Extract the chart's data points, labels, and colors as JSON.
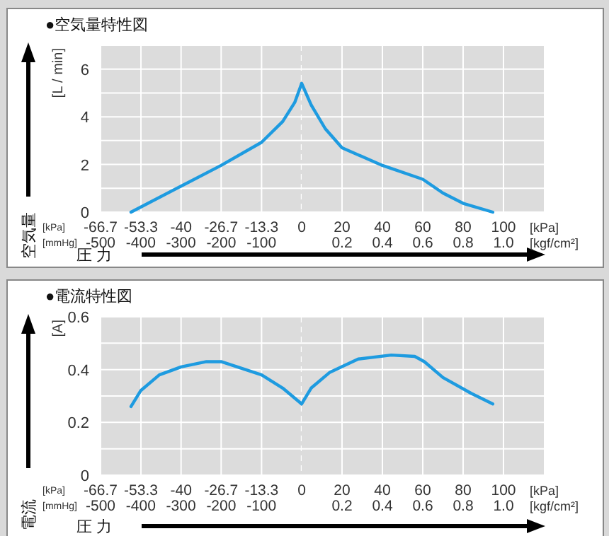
{
  "chart_data": [
    {
      "type": "line",
      "title": "●空気量特性図",
      "xlabel": "圧 力",
      "ylabel": "空気量",
      "annotations": [
        "[L / min]",
        "[kPa]",
        "[mmHg]"
      ],
      "x": [
        -56.6,
        -40,
        -26.7,
        -13.3,
        -6.3,
        -2.3,
        0
      ],
      "series": [
        {
          "color": "#1e9be0",
          "values": [
            0,
            1.09,
            1.96,
            2.93,
            3.8,
            4.6,
            5.4
          ]
        }
      ],
      "xlim": [
        -66.7,
        0
      ],
      "xticks": [
        -66.7,
        -53.3,
        -40,
        -26.7,
        -13.3,
        0
      ],
      "x2lim": [
        -500,
        0
      ],
      "x2ticks": [
        -500,
        -400,
        -300,
        -200,
        -100
      ],
      "ylim": [
        0,
        7
      ],
      "yticks": [
        0,
        {
          "value": 1,
          "label": null
        },
        2,
        {
          "value": 3,
          "label": null
        },
        4,
        {
          "value": 5,
          "label": null
        },
        6,
        {
          "value": 7,
          "label": null
        }
      ],
      "ref_lines": [
        {
          "axis": "x",
          "value": 0,
          "color": "#ffffff",
          "line_style": "dashed"
        }
      ],
      "grid": true,
      "marker": "none",
      "line_style": "solid"
    },
    {
      "type": "line",
      "annotations": [
        "[kPa]",
        "[kgf/cm²]"
      ],
      "x": [
        0,
        4.7,
        11.7,
        20,
        40,
        60,
        70,
        80,
        94.7
      ],
      "series": [
        {
          "color": "#1e9be0",
          "values": [
            5.4,
            4.5,
            3.5,
            2.7,
            1.96,
            1.38,
            0.8,
            0.37,
            0
          ]
        }
      ],
      "xlim": [
        0,
        120
      ],
      "xticks": [
        20,
        40,
        60,
        80,
        100
      ],
      "x2lim": [
        0,
        1.2
      ],
      "x2ticks": [
        0.2,
        0.4,
        0.6,
        0.8,
        {
          "value": 1,
          "label": "1.0"
        }
      ],
      "ylim": [
        0,
        7
      ],
      "yticks": [
        0,
        {
          "value": 1,
          "label": null
        },
        2,
        {
          "value": 3,
          "label": null
        },
        4,
        {
          "value": 5,
          "label": null
        },
        6,
        {
          "value": 7,
          "label": null
        }
      ],
      "tick_labels": "x",
      "grid": true,
      "marker": "none",
      "line_style": "solid"
    },
    {
      "type": "line",
      "title": "●電流特性図",
      "xlabel": "圧 力",
      "ylabel": "電流",
      "annotations": [
        "[A]",
        "[kPa]",
        "[mmHg]"
      ],
      "x": [
        -56.6,
        -53.4,
        -47.2,
        -40,
        -31.6,
        -26.7,
        -13.3,
        -6.3,
        0
      ],
      "series": [
        {
          "color": "#1e9be0",
          "values": [
            0.26,
            0.32,
            0.38,
            0.41,
            0.43,
            0.43,
            0.38,
            0.33,
            0.27
          ]
        }
      ],
      "xlim": [
        -66.7,
        0
      ],
      "xticks": [
        -66.7,
        -53.3,
        -40,
        -26.7,
        -13.3,
        0
      ],
      "x2lim": [
        -500,
        0
      ],
      "x2ticks": [
        -500,
        -400,
        -300,
        -200,
        -100
      ],
      "ylim": [
        0,
        0.6
      ],
      "yticks": [
        0,
        {
          "value": 0.1,
          "label": null
        },
        0.2,
        {
          "value": 0.3,
          "label": null
        },
        0.4,
        {
          "value": 0.5,
          "label": null
        },
        0.6
      ],
      "ref_lines": [
        {
          "axis": "x",
          "value": 0,
          "color": "#ffffff",
          "line_style": "dashed"
        }
      ],
      "grid": true,
      "marker": "none",
      "line_style": "solid"
    },
    {
      "type": "line",
      "annotations": [
        "[kPa]",
        "[kgf/cm²]"
      ],
      "x": [
        0,
        4.7,
        14,
        28,
        44.4,
        56,
        60.8,
        70,
        84,
        94.7
      ],
      "series": [
        {
          "color": "#1e9be0",
          "values": [
            0.27,
            0.33,
            0.39,
            0.44,
            0.455,
            0.45,
            0.43,
            0.37,
            0.31,
            0.27
          ]
        }
      ],
      "xlim": [
        0,
        120
      ],
      "xticks": [
        20,
        40,
        60,
        80,
        100
      ],
      "x2lim": [
        0,
        1.2
      ],
      "x2ticks": [
        0.2,
        0.4,
        0.6,
        0.8,
        {
          "value": 1,
          "label": "1.0"
        }
      ],
      "ylim": [
        0,
        0.6
      ],
      "yticks": [
        0,
        {
          "value": 0.1,
          "label": null
        },
        0.2,
        {
          "value": 0.3,
          "label": null
        },
        0.4,
        {
          "value": 0.5,
          "label": null
        },
        0.6
      ],
      "tick_labels": "x",
      "grid": true,
      "marker": "none",
      "line_style": "solid"
    }
  ]
}
